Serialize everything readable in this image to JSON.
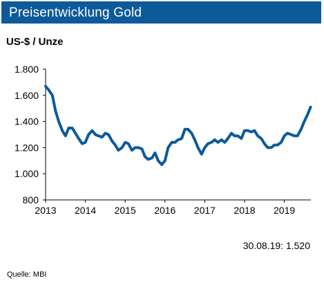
{
  "header": {
    "title": "Preisentwicklung Gold"
  },
  "colors": {
    "header_bg": "#0d5a9a",
    "line": "#0d5a9a"
  },
  "chart_data": {
    "type": "line",
    "title": "Preisentwicklung Gold",
    "ylabel": "US-$ / Unze",
    "xlabel": "",
    "ylim": [
      800,
      1800
    ],
    "xlim": [
      2013.0,
      2019.667
    ],
    "y_ticks": [
      800,
      1000,
      1200,
      1400,
      1600,
      1800
    ],
    "y_tick_labels": [
      "800",
      "1.000",
      "1.200",
      "1.400",
      "1.600",
      "1.800"
    ],
    "x_ticks": [
      2013,
      2014,
      2015,
      2016,
      2017,
      2018,
      2019
    ],
    "x_tick_labels": [
      "2013",
      "2014",
      "2015",
      "2016",
      "2017",
      "2018",
      "2019"
    ],
    "grid": false,
    "legend": "none",
    "series": [
      {
        "x": [
          2013.0,
          2013.08,
          2013.17,
          2013.25,
          2013.33,
          2013.42,
          2013.5,
          2013.58,
          2013.67,
          2013.75,
          2013.83,
          2013.92,
          2014.0,
          2014.08,
          2014.17,
          2014.25,
          2014.33,
          2014.42,
          2014.5,
          2014.58,
          2014.67,
          2014.75,
          2014.83,
          2014.92,
          2015.0,
          2015.08,
          2015.17,
          2015.25,
          2015.33,
          2015.42,
          2015.5,
          2015.58,
          2015.67,
          2015.75,
          2015.83,
          2015.92,
          2016.0,
          2016.08,
          2016.17,
          2016.25,
          2016.33,
          2016.42,
          2016.5,
          2016.58,
          2016.67,
          2016.75,
          2016.83,
          2016.92,
          2017.0,
          2017.08,
          2017.17,
          2017.25,
          2017.33,
          2017.42,
          2017.5,
          2017.58,
          2017.67,
          2017.75,
          2017.83,
          2017.92,
          2018.0,
          2018.08,
          2018.17,
          2018.25,
          2018.33,
          2018.42,
          2018.5,
          2018.58,
          2018.67,
          2018.75,
          2018.83,
          2018.92,
          2019.0,
          2019.08,
          2019.17,
          2019.25,
          2019.33,
          2019.42,
          2019.5,
          2019.58,
          2019.66
        ],
        "values": [
          1670,
          1640,
          1600,
          1480,
          1400,
          1330,
          1290,
          1350,
          1350,
          1310,
          1270,
          1230,
          1240,
          1300,
          1330,
          1300,
          1290,
          1280,
          1310,
          1300,
          1250,
          1220,
          1180,
          1200,
          1240,
          1230,
          1180,
          1200,
          1200,
          1190,
          1130,
          1110,
          1120,
          1160,
          1100,
          1070,
          1100,
          1200,
          1240,
          1240,
          1260,
          1270,
          1340,
          1340,
          1310,
          1260,
          1200,
          1150,
          1200,
          1230,
          1240,
          1260,
          1240,
          1260,
          1240,
          1270,
          1310,
          1290,
          1290,
          1270,
          1330,
          1330,
          1320,
          1330,
          1290,
          1270,
          1230,
          1200,
          1200,
          1220,
          1220,
          1240,
          1290,
          1310,
          1300,
          1290,
          1290,
          1340,
          1400,
          1450,
          1510
        ]
      }
    ],
    "annotation": "30.08.19: 1.520"
  },
  "source": "Quelle:  MBI"
}
